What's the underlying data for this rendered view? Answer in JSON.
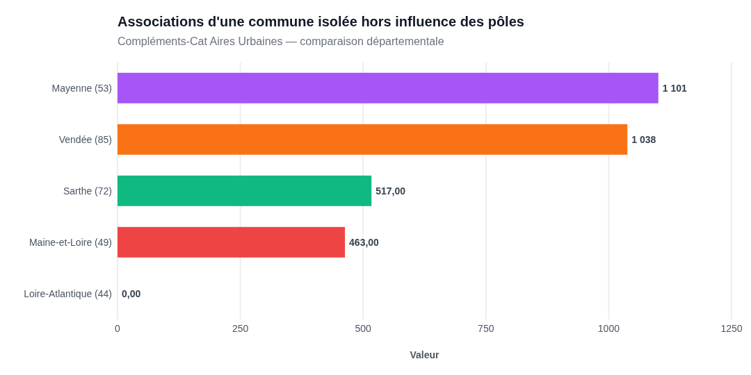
{
  "chart_data": {
    "type": "bar",
    "orientation": "horizontal",
    "title": "Associations d'une commune isolée hors influence des pôles",
    "subtitle": "Compléments-Cat Aires Urbaines — comparaison départementale",
    "xlabel": "Valeur",
    "categories": [
      "Mayenne (53)",
      "Vendée (85)",
      "Sarthe (72)",
      "Maine-et-Loire (49)",
      "Loire-Atlantique (44)"
    ],
    "values": [
      1101,
      1038,
      517,
      463,
      0
    ],
    "value_labels": [
      "1 101",
      "1 038",
      "517,00",
      "463,00",
      "0,00"
    ],
    "colors": [
      "#a855f7",
      "#f97316",
      "#10b981",
      "#ef4444",
      "#3b82f6"
    ],
    "xlim": [
      0,
      1250
    ],
    "xticks": [
      0,
      250,
      500,
      750,
      1000,
      1250
    ],
    "grid": "x"
  }
}
